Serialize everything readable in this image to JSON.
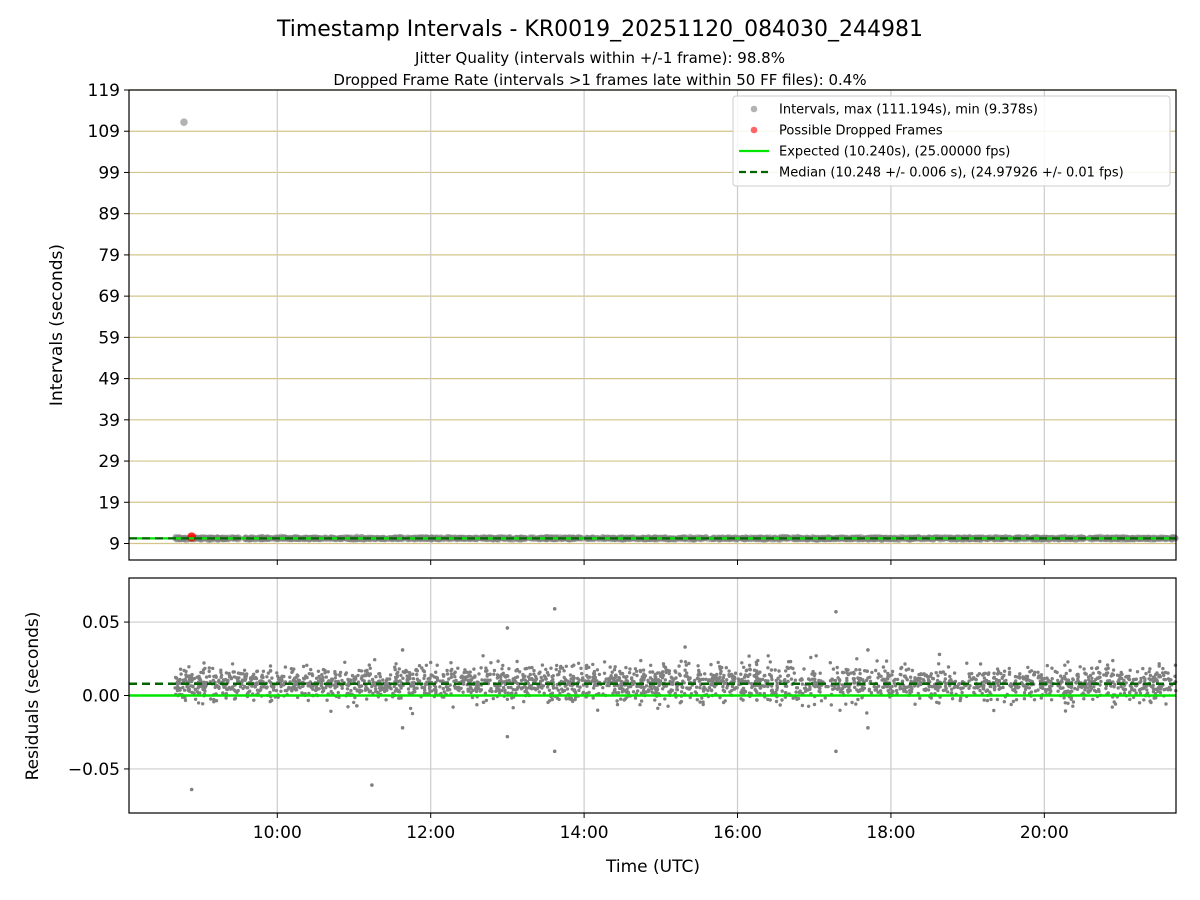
{
  "figure": {
    "title": "Timestamp Intervals - KR0019_20251120_084030_244981",
    "subtitle_1": "Jitter Quality (intervals within +/-1 frame): 98.8%",
    "subtitle_2": "Dropped Frame Rate (intervals >1 frames late within 50 FF files): 0.4%"
  },
  "colors": {
    "points": "#808080",
    "dropped": "#ff0000",
    "expected": "#00e600",
    "median": "#006400",
    "hgrid_top": "#d4c488",
    "grid": "#cccccc"
  },
  "chart_data": [
    {
      "type": "scatter",
      "panel": "intervals",
      "ylabel": "Intervals (seconds)",
      "xlim": [
        "08:04",
        "21:43"
      ],
      "ylim": [
        5,
        119
      ],
      "y_ticks": [
        9,
        19,
        29,
        39,
        49,
        59,
        69,
        79,
        89,
        99,
        109,
        119
      ],
      "x_ticks": [
        "10:00",
        "12:00",
        "14:00",
        "16:00",
        "18:00",
        "20:00"
      ],
      "grid": true,
      "legend_position": "top-right",
      "legend": [
        "Intervals, max (111.194s), min (9.378s)",
        "Possible Dropped Frames",
        "Expected (10.240s), (25.00000 fps)",
        "Median (10.248 +/- 0.006 s), (24.97926 +/- 0.01 fps)"
      ],
      "series": [
        {
          "name": "Intervals, max (111.194s), min (9.378s)",
          "kind": "scatter",
          "x_range": [
            "08:40",
            "21:43"
          ],
          "y_typical": 10.248,
          "y_max": 111.194,
          "y_min": 9.378,
          "outliers": [
            {
              "x": "08:47",
              "y": 111.194
            }
          ]
        },
        {
          "name": "Possible Dropped Frames",
          "kind": "scatter",
          "points": [
            {
              "x": "08:53",
              "y": 10.6
            }
          ]
        },
        {
          "name": "Expected (10.240s), (25.00000 fps)",
          "kind": "hline",
          "y": 10.24
        },
        {
          "name": "Median (10.248 +/- 0.006 s), (24.97926 +/- 0.01 fps)",
          "kind": "hline",
          "y": 10.248
        }
      ]
    },
    {
      "type": "scatter",
      "panel": "residuals",
      "xlabel": "Time (UTC)",
      "ylabel": "Residuals (seconds)",
      "xlim": [
        "08:04",
        "21:43"
      ],
      "ylim": [
        -0.08,
        0.08
      ],
      "y_ticks": [
        -0.05,
        0.0,
        0.05
      ],
      "y_tick_labels": [
        "−0.05",
        "0.00",
        "0.05"
      ],
      "x_ticks": [
        "10:00",
        "12:00",
        "14:00",
        "16:00",
        "18:00",
        "20:00"
      ],
      "grid": true,
      "series": [
        {
          "kind": "scatter",
          "x_range": [
            "08:40",
            "21:43"
          ],
          "y_center": 0.008,
          "y_spread": 0.006,
          "outliers": [
            {
              "x": "08:53",
              "y": -0.064
            },
            {
              "x": "11:14",
              "y": -0.061
            },
            {
              "x": "11:38",
              "y": -0.022
            },
            {
              "x": "11:38",
              "y": 0.031
            },
            {
              "x": "13:00",
              "y": 0.046
            },
            {
              "x": "13:00",
              "y": -0.028
            },
            {
              "x": "13:37",
              "y": 0.059
            },
            {
              "x": "13:37",
              "y": -0.038
            },
            {
              "x": "15:19",
              "y": 0.033
            },
            {
              "x": "17:17",
              "y": 0.057
            },
            {
              "x": "17:17",
              "y": -0.038
            },
            {
              "x": "17:42",
              "y": 0.031
            },
            {
              "x": "17:42",
              "y": -0.022
            },
            {
              "x": "18:38",
              "y": 0.028
            }
          ]
        },
        {
          "kind": "hline",
          "y": 0.0,
          "role": "expected"
        },
        {
          "kind": "hline",
          "y": 0.008,
          "role": "median"
        }
      ]
    }
  ]
}
